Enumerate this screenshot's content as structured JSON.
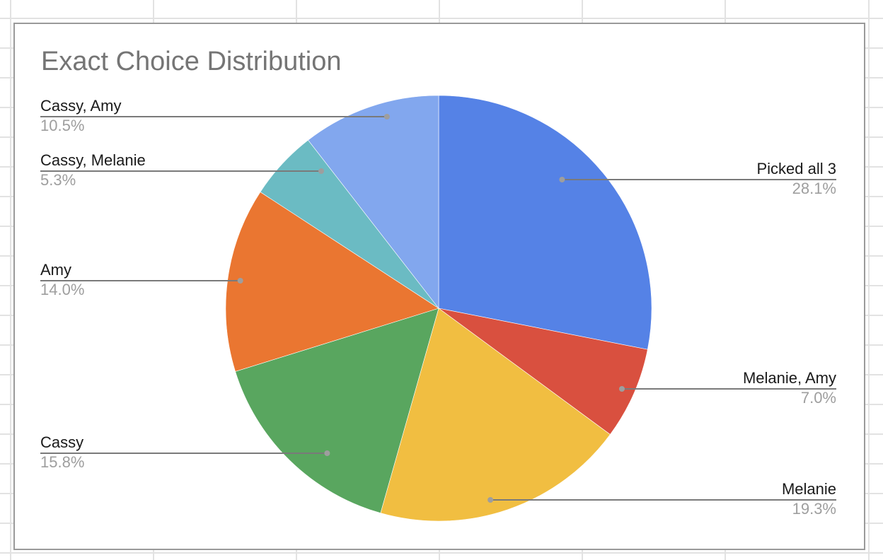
{
  "chart_data": {
    "type": "pie",
    "title": "Exact Choice Distribution",
    "slices": [
      {
        "label": "Picked all 3",
        "value": 28.1,
        "display": "28.1%",
        "color": "#5582E6"
      },
      {
        "label": "Melanie, Amy",
        "value": 7.0,
        "display": "7.0%",
        "color": "#D9503F"
      },
      {
        "label": "Melanie",
        "value": 19.3,
        "display": "19.3%",
        "color": "#F1BE41"
      },
      {
        "label": "Cassy",
        "value": 15.8,
        "display": "15.8%",
        "color": "#59A65F"
      },
      {
        "label": "Amy",
        "value": 14.0,
        "display": "14.0%",
        "color": "#EA7631"
      },
      {
        "label": "Cassy, Melanie",
        "value": 5.3,
        "display": "5.3%",
        "color": "#6BBBC3"
      },
      {
        "label": "Cassy, Amy",
        "value": 10.5,
        "display": "10.5%",
        "color": "#82A7EE"
      }
    ],
    "start_angle": "12 o'clock, clockwise",
    "legend": "labeled leader lines",
    "units": "percent"
  }
}
